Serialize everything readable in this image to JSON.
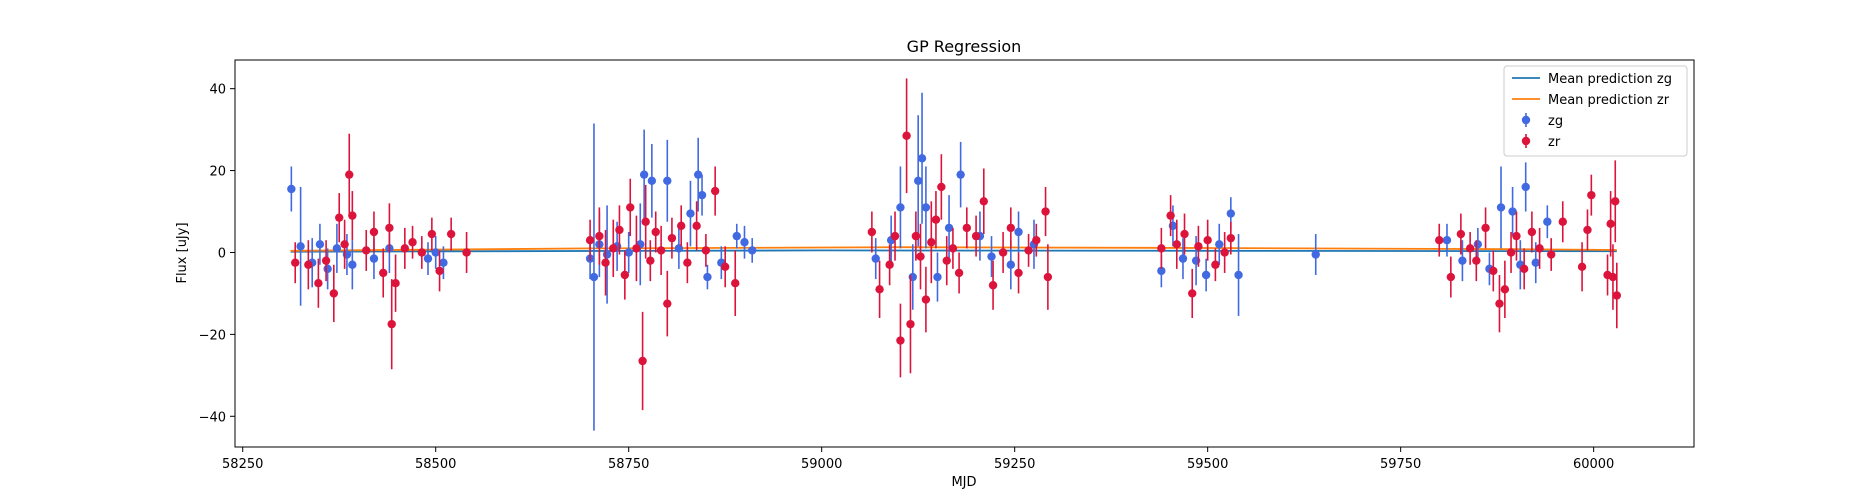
{
  "chart_data": {
    "type": "scatter",
    "title": "GP Regression",
    "xlabel": "MJD",
    "ylabel": "Flux [uJy]",
    "xlim": [
      58240,
      60130
    ],
    "ylim": [
      -47.5,
      47
    ],
    "xticks": [
      58250,
      58500,
      58750,
      59000,
      59250,
      59500,
      59750,
      60000
    ],
    "yticks": [
      -40,
      -20,
      0,
      20,
      40
    ],
    "grid": false,
    "legend_location": "upper right",
    "lines": [
      {
        "name": "Mean prediction zg",
        "color": "#1f77b4",
        "x": [
          58312,
          59000,
          59500,
          60030
        ],
        "y": [
          0.2,
          0.5,
          0.4,
          0.3
        ]
      },
      {
        "name": "Mean prediction zr",
        "color": "#ff7f0e",
        "x": [
          58312,
          58700,
          59100,
          59500,
          59900,
          60030
        ],
        "y": [
          0.4,
          1.0,
          1.3,
          1.1,
          0.8,
          0.6
        ]
      }
    ],
    "series": [
      {
        "name": "zg",
        "color": "#4169e1",
        "points": [
          [
            58313,
            15.5,
            5.5
          ],
          [
            58325,
            1.5,
            14.5
          ],
          [
            58340,
            -2.5,
            6
          ],
          [
            58350,
            2,
            5
          ],
          [
            58360,
            -4,
            5
          ],
          [
            58372,
            1,
            6
          ],
          [
            58385,
            -0.5,
            5
          ],
          [
            58392,
            -3,
            6
          ],
          [
            58420,
            -1.5,
            5
          ],
          [
            58440,
            1,
            6
          ],
          [
            58490,
            -1.5,
            4
          ],
          [
            58500,
            0,
            4
          ],
          [
            58510,
            -2.5,
            4
          ],
          [
            58700,
            -1.5,
            5
          ],
          [
            58705,
            -6,
            37.5
          ],
          [
            58712,
            2,
            8
          ],
          [
            58722,
            -0.5,
            12
          ],
          [
            58735,
            1.5,
            6
          ],
          [
            58750,
            0,
            5
          ],
          [
            58765,
            2,
            10
          ],
          [
            58770,
            19,
            11
          ],
          [
            58780,
            17.5,
            9
          ],
          [
            58800,
            17.5,
            10
          ],
          [
            58815,
            1,
            5
          ],
          [
            58830,
            9.5,
            8
          ],
          [
            58840,
            19,
            9
          ],
          [
            58845,
            14,
            5
          ],
          [
            58852,
            -6,
            3
          ],
          [
            58870,
            -2.5,
            4
          ],
          [
            58890,
            4,
            3
          ],
          [
            58900,
            2.5,
            4
          ],
          [
            58910,
            0.5,
            3
          ],
          [
            59070,
            -1.5,
            5
          ],
          [
            59090,
            3,
            6
          ],
          [
            59102,
            11,
            10
          ],
          [
            59118,
            -6,
            8
          ],
          [
            59125,
            17.5,
            16
          ],
          [
            59130,
            23,
            16
          ],
          [
            59135,
            11,
            10
          ],
          [
            59150,
            -6,
            6
          ],
          [
            59165,
            6,
            8
          ],
          [
            59180,
            19,
            8
          ],
          [
            59205,
            4,
            6
          ],
          [
            59220,
            -1,
            5
          ],
          [
            59245,
            -3,
            6
          ],
          [
            59255,
            5,
            5
          ],
          [
            59275,
            2,
            6
          ],
          [
            59440,
            -4.5,
            4
          ],
          [
            59455,
            6.5,
            5
          ],
          [
            59468,
            -1.5,
            5
          ],
          [
            59485,
            -2,
            6
          ],
          [
            59498,
            -5.5,
            4
          ],
          [
            59515,
            2,
            5
          ],
          [
            59530,
            9.5,
            4
          ],
          [
            59540,
            -5.5,
            10
          ],
          [
            59640,
            -0.5,
            5
          ],
          [
            59810,
            3,
            4
          ],
          [
            59830,
            -2,
            5
          ],
          [
            59850,
            2,
            4
          ],
          [
            59865,
            -4,
            4
          ],
          [
            59880,
            11,
            10
          ],
          [
            59895,
            10,
            6
          ],
          [
            59905,
            -3,
            6
          ],
          [
            59912,
            16,
            6
          ],
          [
            59925,
            -2.5,
            5
          ],
          [
            59940,
            7.5,
            4
          ]
        ]
      },
      {
        "name": "zr",
        "color": "#dc143c",
        "points": [
          [
            58318,
            -2.5,
            5
          ],
          [
            58335,
            -3,
            6
          ],
          [
            58348,
            -7.5,
            6
          ],
          [
            58358,
            -2,
            5
          ],
          [
            58368,
            -10,
            7
          ],
          [
            58375,
            8.5,
            6
          ],
          [
            58382,
            2,
            6
          ],
          [
            58388,
            19,
            10
          ],
          [
            58392,
            9,
            6
          ],
          [
            58410,
            0.5,
            5
          ],
          [
            58420,
            5,
            5
          ],
          [
            58432,
            -5,
            6
          ],
          [
            58440,
            6,
            6
          ],
          [
            58443,
            -17.5,
            11
          ],
          [
            58448,
            -7.5,
            7
          ],
          [
            58460,
            1,
            5
          ],
          [
            58470,
            2.5,
            4
          ],
          [
            58482,
            0,
            4
          ],
          [
            58495,
            4.5,
            4
          ],
          [
            58505,
            -4.5,
            5
          ],
          [
            58520,
            4.5,
            4
          ],
          [
            58540,
            0,
            5
          ],
          [
            58700,
            3,
            5
          ],
          [
            58712,
            4,
            7
          ],
          [
            58720,
            -2.5,
            8
          ],
          [
            58730,
            1,
            7
          ],
          [
            58738,
            5.5,
            6
          ],
          [
            58745,
            -5.5,
            6
          ],
          [
            58752,
            11,
            7
          ],
          [
            58760,
            1,
            8
          ],
          [
            58768,
            -26.5,
            12
          ],
          [
            58772,
            7.5,
            9
          ],
          [
            58778,
            -2,
            5
          ],
          [
            58785,
            5,
            5
          ],
          [
            58792,
            0.5,
            6
          ],
          [
            58800,
            -12.5,
            8
          ],
          [
            58806,
            3.5,
            5
          ],
          [
            58818,
            6.5,
            5
          ],
          [
            58826,
            -2.5,
            5
          ],
          [
            58838,
            6.5,
            6
          ],
          [
            58850,
            0.5,
            4
          ],
          [
            58862,
            15,
            6
          ],
          [
            58875,
            -3.5,
            5
          ],
          [
            58888,
            -7.5,
            8
          ],
          [
            59065,
            5,
            5
          ],
          [
            59075,
            -9,
            7
          ],
          [
            59088,
            -3,
            5
          ],
          [
            59095,
            4,
            6
          ],
          [
            59102,
            -21.5,
            9
          ],
          [
            59110,
            28.5,
            14
          ],
          [
            59115,
            -17.5,
            12
          ],
          [
            59122,
            4,
            6
          ],
          [
            59128,
            -1,
            8
          ],
          [
            59135,
            -11.5,
            8
          ],
          [
            59142,
            2.5,
            10
          ],
          [
            59148,
            8,
            7
          ],
          [
            59155,
            16,
            8
          ],
          [
            59162,
            -2,
            6
          ],
          [
            59170,
            1,
            5
          ],
          [
            59178,
            -5,
            5
          ],
          [
            59188,
            6,
            5
          ],
          [
            59200,
            4,
            5
          ],
          [
            59210,
            12.5,
            8
          ],
          [
            59222,
            -8,
            6
          ],
          [
            59235,
            0,
            5
          ],
          [
            59245,
            6,
            5
          ],
          [
            59255,
            -5,
            5
          ],
          [
            59268,
            0.5,
            4
          ],
          [
            59278,
            3,
            4
          ],
          [
            59290,
            10,
            6
          ],
          [
            59293,
            -6,
            8
          ],
          [
            59440,
            1,
            5
          ],
          [
            59452,
            9,
            5
          ],
          [
            59460,
            2,
            6
          ],
          [
            59470,
            4.5,
            5
          ],
          [
            59480,
            -10,
            6
          ],
          [
            59488,
            1.5,
            5
          ],
          [
            59500,
            3,
            5
          ],
          [
            59510,
            -3,
            4
          ],
          [
            59522,
            0,
            5
          ],
          [
            59530,
            3.5,
            4
          ],
          [
            59800,
            3,
            4
          ],
          [
            59815,
            -6,
            5
          ],
          [
            59828,
            4.5,
            5
          ],
          [
            59840,
            1,
            4
          ],
          [
            59848,
            -2,
            5
          ],
          [
            59860,
            6,
            5
          ],
          [
            59870,
            -4.5,
            5
          ],
          [
            59878,
            -12.5,
            7
          ],
          [
            59885,
            -9,
            7
          ],
          [
            59893,
            0,
            5
          ],
          [
            59900,
            4,
            6
          ],
          [
            59910,
            -4,
            5
          ],
          [
            59920,
            5,
            5
          ],
          [
            59930,
            1,
            5
          ],
          [
            59945,
            -0.5,
            4
          ],
          [
            59960,
            7.5,
            5
          ],
          [
            59985,
            -3.5,
            6
          ],
          [
            59992,
            5.5,
            5
          ],
          [
            59997,
            14,
            5
          ],
          [
            60018,
            -5.5,
            5
          ],
          [
            60022,
            7,
            8
          ],
          [
            60025,
            -6,
            8
          ],
          [
            60028,
            12.5,
            10
          ],
          [
            60030,
            -10.5,
            8
          ]
        ]
      }
    ]
  }
}
